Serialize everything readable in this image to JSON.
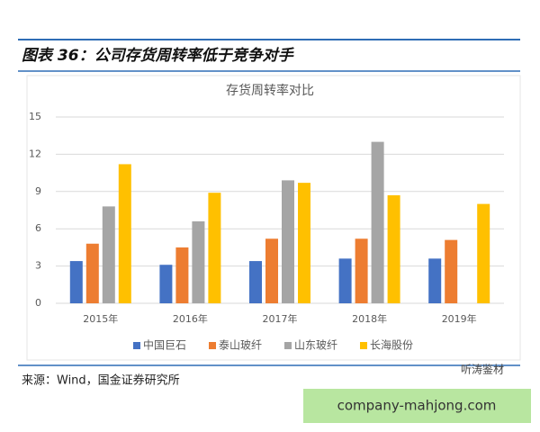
{
  "header": {
    "title": "图表 36：公司存货周转率低于竞争对手"
  },
  "chart_data": {
    "type": "bar",
    "title": "存货周转率对比",
    "categories": [
      "2015年",
      "2016年",
      "2017年",
      "2018年",
      "2019年"
    ],
    "series": [
      {
        "name": "中国巨石",
        "color": "#4472c4",
        "values": [
          3.4,
          3.1,
          3.4,
          3.6,
          3.6
        ]
      },
      {
        "name": "泰山玻纤",
        "color": "#ed7d31",
        "values": [
          4.8,
          4.5,
          5.2,
          5.2,
          5.1
        ]
      },
      {
        "name": "山东玻纤",
        "color": "#a5a5a5",
        "values": [
          7.8,
          6.6,
          9.9,
          13.0,
          null
        ]
      },
      {
        "name": "长海股份",
        "color": "#ffc000",
        "values": [
          11.2,
          8.9,
          9.7,
          8.7,
          8.0
        ]
      }
    ],
    "ylim": [
      0,
      15
    ],
    "yticks": [
      0,
      3,
      6,
      9,
      12,
      15
    ],
    "grid": true,
    "legend": "bottom"
  },
  "footer": {
    "source": "来源：Wind，国金证券研究所"
  },
  "watermark": {
    "logo": "听涛鉴材",
    "site": "company-mahjong.com"
  }
}
